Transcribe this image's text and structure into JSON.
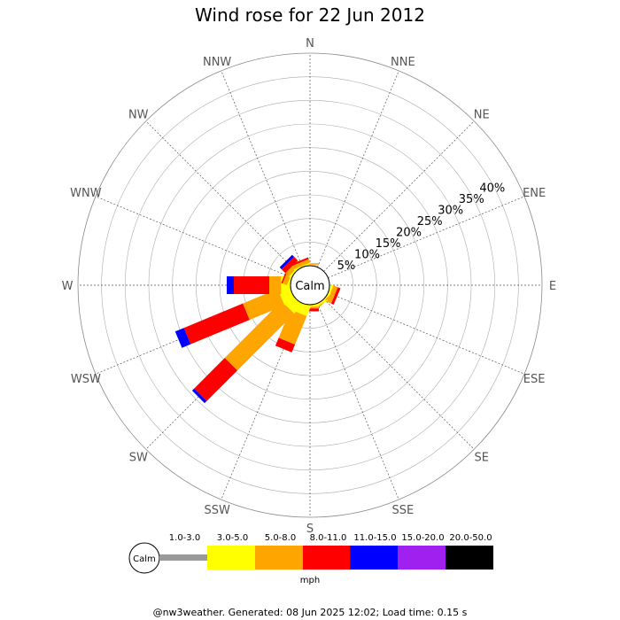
{
  "chart_data": {
    "type": "windrose",
    "title": "Wind rose for 22 Jun 2012",
    "center_label": "Calm",
    "directions": [
      "N",
      "NNE",
      "NE",
      "ENE",
      "E",
      "ESE",
      "SE",
      "SSE",
      "S",
      "SSW",
      "SW",
      "WSW",
      "W",
      "WNW",
      "NW",
      "NNW"
    ],
    "radial_ticks": [
      5,
      10,
      15,
      20,
      25,
      30,
      35,
      40
    ],
    "radial_tick_labels": [
      "5%",
      "10%",
      "15%",
      "20%",
      "25%",
      "30%",
      "35%",
      "40%"
    ],
    "rmax": 45,
    "speed_unit": "mph",
    "speed_bins": [
      {
        "label": "1.0-3.0",
        "color": "#999999"
      },
      {
        "label": "3.0-5.0",
        "color": "#ffff00"
      },
      {
        "label": "5.0-8.0",
        "color": "#ffa500"
      },
      {
        "label": "8.0-11.0",
        "color": "#ff0000"
      },
      {
        "label": "11.0-15.0",
        "color": "#0000ff"
      },
      {
        "label": "15.0-20.0",
        "color": "#a020f0"
      },
      {
        "label": "20.0-50.0",
        "color": "#000000"
      }
    ],
    "series": [
      {
        "direction": "N",
        "values": [
          0,
          0.2,
          0.3,
          0,
          0,
          0,
          0
        ]
      },
      {
        "direction": "NNE",
        "values": [
          0,
          0,
          0,
          0,
          0,
          0,
          0
        ]
      },
      {
        "direction": "NE",
        "values": [
          0,
          0,
          0,
          0,
          0,
          0,
          0
        ]
      },
      {
        "direction": "ENE",
        "values": [
          0,
          0,
          0,
          0,
          0,
          0,
          0
        ]
      },
      {
        "direction": "E",
        "values": [
          0,
          0,
          0,
          0,
          0,
          0,
          0
        ]
      },
      {
        "direction": "ESE",
        "values": [
          0,
          0.5,
          1.0,
          0.6,
          0,
          0,
          0
        ]
      },
      {
        "direction": "SE",
        "values": [
          0,
          0.3,
          0.3,
          0,
          0,
          0,
          0
        ]
      },
      {
        "direction": "SSE",
        "values": [
          0,
          0.4,
          0,
          0,
          0,
          0,
          0
        ]
      },
      {
        "direction": "S",
        "values": [
          0,
          0.4,
          0.4,
          0.6,
          0,
          0,
          0
        ]
      },
      {
        "direction": "SSW",
        "values": [
          0,
          2.2,
          6.5,
          1.8,
          0,
          0,
          0
        ]
      },
      {
        "direction": "SW",
        "values": [
          0,
          2.5,
          17.0,
          9.2,
          0.6,
          0,
          0
        ]
      },
      {
        "direction": "WSW",
        "values": [
          0,
          2.5,
          8.0,
          13.5,
          2.0,
          0,
          0
        ]
      },
      {
        "direction": "W",
        "values": [
          0,
          2.0,
          2.5,
          7.5,
          1.5,
          0,
          0
        ]
      },
      {
        "direction": "WNW",
        "values": [
          0,
          0.4,
          1.0,
          0.3,
          0,
          0,
          0
        ]
      },
      {
        "direction": "NW",
        "values": [
          0,
          0.4,
          1.0,
          1.1,
          0.6,
          0,
          0
        ]
      },
      {
        "direction": "NNW",
        "values": [
          0,
          0.3,
          0.8,
          0.4,
          0,
          0,
          0
        ]
      }
    ]
  },
  "legend": {
    "calm_label": "Calm",
    "unit_label": "mph"
  },
  "footer": {
    "text": "@nw3weather. Generated: 08 Jun 2025 12:02; Load time: 0.15 s"
  }
}
